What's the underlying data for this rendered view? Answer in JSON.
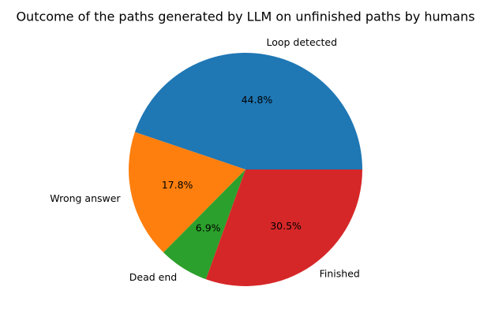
{
  "chart_data": {
    "type": "pie",
    "title": "Outcome of the paths generated by LLM on unfinished paths by humans",
    "categories": [
      "Loop detected",
      "Wrong answer",
      "Dead end",
      "Finished"
    ],
    "values": [
      44.8,
      17.8,
      6.9,
      30.5
    ],
    "value_labels": [
      "44.8%",
      "17.8%",
      "6.9%",
      "30.5%"
    ],
    "colors": [
      "#1f77b4",
      "#ff7f0e",
      "#2ca02c",
      "#d62728"
    ]
  }
}
